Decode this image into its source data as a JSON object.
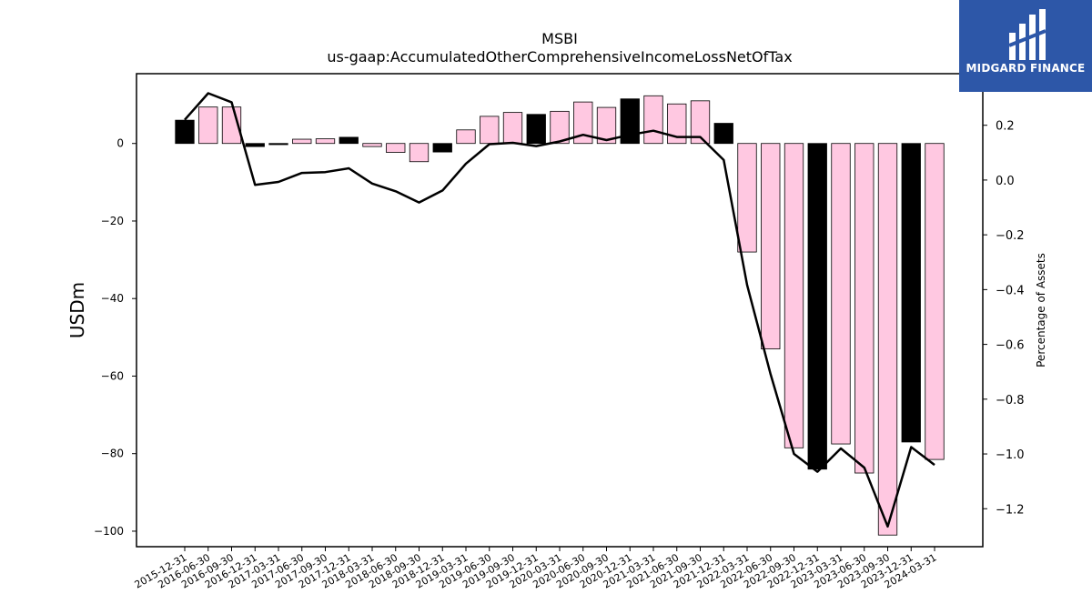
{
  "logo": {
    "text": "MIDGARD FINANCE",
    "background": "#2d57a8"
  },
  "chart_data": {
    "type": "bar",
    "title": "MSBI",
    "subtitle": "us-gaap:AccumulatedOtherComprehensiveIncomeLossNetOfTax",
    "ylabel": "USDm",
    "y2label": "Percentage of Assets",
    "ylim": [
      -104,
      18
    ],
    "y2lim": [
      -1.3386,
      0.3883
    ],
    "yticks": [
      0,
      -20,
      -40,
      -60,
      -80,
      -100
    ],
    "y2ticks": [
      0.2,
      0.0,
      -0.2,
      -0.4,
      -0.6,
      -0.8,
      -1.0,
      -1.2
    ],
    "categories": [
      "2015-12-31",
      "2016-06-30",
      "2016-09-30",
      "2016-12-31",
      "2017-03-31",
      "2017-06-30",
      "2017-09-30",
      "2017-12-31",
      "2018-03-31",
      "2018-06-30",
      "2018-09-30",
      "2018-12-31",
      "2019-03-31",
      "2019-06-30",
      "2019-09-30",
      "2019-12-31",
      "2020-03-31",
      "2020-06-30",
      "2020-09-30",
      "2020-12-31",
      "2021-03-31",
      "2021-06-30",
      "2021-09-30",
      "2021-12-31",
      "2022-03-31",
      "2022-06-30",
      "2022-09-30",
      "2022-12-31",
      "2023-03-31",
      "2023-06-30",
      "2023-09-30",
      "2023-12-31",
      "2024-03-31"
    ],
    "series": [
      {
        "kind": "bar",
        "values": [
          6.0,
          9.4,
          9.4,
          -0.8,
          -0.3,
          1.1,
          1.2,
          1.6,
          -0.8,
          -2.3,
          -4.7,
          -2.2,
          3.5,
          7.0,
          8.0,
          7.5,
          8.3,
          10.7,
          9.3,
          11.5,
          12.3,
          10.2,
          11.0,
          5.2,
          -28.0,
          -53.0,
          -78.5,
          -84.0,
          -77.5,
          -85.0,
          -101.0,
          -77.0,
          -81.5
        ],
        "colors": [
          "#000000",
          "#ffc8e1",
          "#ffc8e1",
          "#000000",
          "#000000",
          "#ffc8e1",
          "#ffc8e1",
          "#000000",
          "#ffc8e1",
          "#ffc8e1",
          "#ffc8e1",
          "#000000",
          "#ffc8e1",
          "#ffc8e1",
          "#ffc8e1",
          "#000000",
          "#ffc8e1",
          "#ffc8e1",
          "#ffc8e1",
          "#000000",
          "#ffc8e1",
          "#ffc8e1",
          "#ffc8e1",
          "#000000",
          "#ffc8e1",
          "#ffc8e1",
          "#ffc8e1",
          "#000000",
          "#ffc8e1",
          "#ffc8e1",
          "#ffc8e1",
          "#000000",
          "#ffc8e1"
        ]
      },
      {
        "kind": "line",
        "axis": "right",
        "color": "#000000",
        "values": [
          0.22,
          0.317,
          0.284,
          -0.018,
          -0.007,
          0.026,
          0.029,
          0.043,
          -0.013,
          -0.041,
          -0.082,
          -0.038,
          0.06,
          0.131,
          0.136,
          0.124,
          0.141,
          0.165,
          0.146,
          0.165,
          0.18,
          0.157,
          0.157,
          0.073,
          -0.383,
          -0.709,
          -1.0,
          -1.065,
          -0.98,
          -1.05,
          -1.265,
          -0.975,
          -1.04
        ]
      }
    ]
  }
}
